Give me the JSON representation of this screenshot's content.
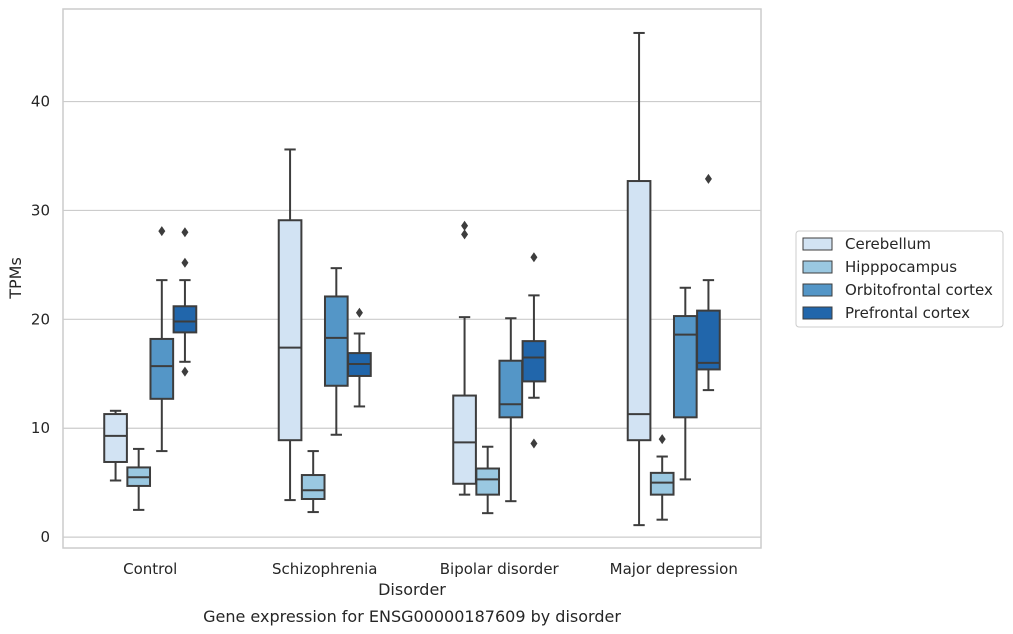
{
  "chart_data": {
    "type": "box",
    "xlabel": "Disorder",
    "ylabel": "TPMs",
    "caption": "Gene expression for ENSG00000187609 by disorder",
    "categories": [
      "Control",
      "Schizophrenia",
      "Bipolar disorder",
      "Major depression"
    ],
    "yticks": [
      0,
      10,
      20,
      30,
      40
    ],
    "ylim": [
      -1,
      48.5
    ],
    "grid": "horizontal",
    "legend_position": "right",
    "series": [
      {
        "name": "Cerebellum",
        "color": "#d2e3f3",
        "boxes": [
          {
            "whisker_low": 5.2,
            "q1": 6.9,
            "median": 9.3,
            "q3": 11.3,
            "whisker_high": 11.6,
            "outliers": []
          },
          {
            "whisker_low": 3.4,
            "q1": 8.9,
            "median": 17.4,
            "q3": 29.1,
            "whisker_high": 35.6,
            "outliers": []
          },
          {
            "whisker_low": 3.9,
            "q1": 4.9,
            "median": 8.7,
            "q3": 13.0,
            "whisker_high": 20.2,
            "outliers": [
              27.8,
              28.6
            ]
          },
          {
            "whisker_low": 1.1,
            "q1": 8.9,
            "median": 11.3,
            "q3": 32.7,
            "whisker_high": 46.3,
            "outliers": []
          }
        ]
      },
      {
        "name": "Hipppocampus",
        "color": "#9ac8e1",
        "boxes": [
          {
            "whisker_low": 2.5,
            "q1": 4.7,
            "median": 5.5,
            "q3": 6.4,
            "whisker_high": 8.1,
            "outliers": []
          },
          {
            "whisker_low": 2.3,
            "q1": 3.5,
            "median": 4.3,
            "q3": 5.7,
            "whisker_high": 7.9,
            "outliers": []
          },
          {
            "whisker_low": 2.2,
            "q1": 3.9,
            "median": 5.3,
            "q3": 6.3,
            "whisker_high": 8.3,
            "outliers": []
          },
          {
            "whisker_low": 1.6,
            "q1": 3.9,
            "median": 5.0,
            "q3": 5.9,
            "whisker_high": 7.4,
            "outliers": [
              9.0
            ]
          }
        ]
      },
      {
        "name": "Orbitofrontal cortex",
        "color": "#5496c7",
        "boxes": [
          {
            "whisker_low": 7.9,
            "q1": 12.7,
            "median": 15.7,
            "q3": 18.2,
            "whisker_high": 23.6,
            "outliers": [
              28.1
            ]
          },
          {
            "whisker_low": 9.4,
            "q1": 13.9,
            "median": 18.3,
            "q3": 22.1,
            "whisker_high": 24.7,
            "outliers": []
          },
          {
            "whisker_low": 3.3,
            "q1": 11.0,
            "median": 12.2,
            "q3": 16.2,
            "whisker_high": 20.1,
            "outliers": []
          },
          {
            "whisker_low": 5.3,
            "q1": 11.0,
            "median": 18.6,
            "q3": 20.3,
            "whisker_high": 22.9,
            "outliers": []
          }
        ]
      },
      {
        "name": "Prefrontal cortex",
        "color": "#2166ab",
        "boxes": [
          {
            "whisker_low": 16.1,
            "q1": 18.8,
            "median": 19.8,
            "q3": 21.2,
            "whisker_high": 23.6,
            "outliers": [
              15.2,
              25.2,
              28.0
            ]
          },
          {
            "whisker_low": 12.0,
            "q1": 14.8,
            "median": 15.9,
            "q3": 16.9,
            "whisker_high": 18.7,
            "outliers": [
              20.6
            ]
          },
          {
            "whisker_low": 12.8,
            "q1": 14.3,
            "median": 16.5,
            "q3": 18.0,
            "whisker_high": 22.2,
            "outliers": [
              8.6,
              25.7
            ]
          },
          {
            "whisker_low": 13.5,
            "q1": 15.4,
            "median": 16.0,
            "q3": 20.8,
            "whisker_high": 23.6,
            "outliers": [
              32.9
            ]
          }
        ]
      }
    ]
  }
}
